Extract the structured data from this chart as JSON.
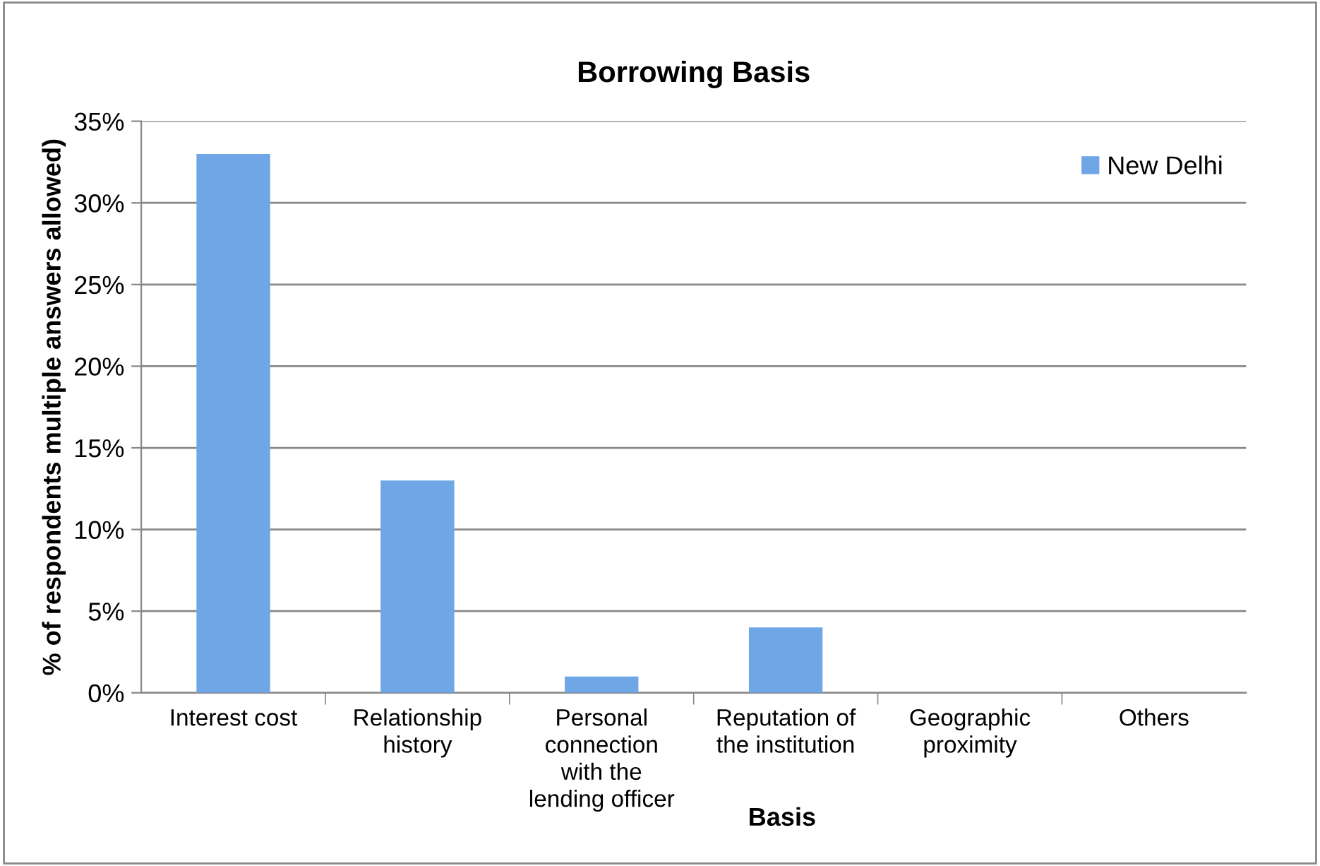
{
  "chart_data": {
    "type": "bar",
    "title": "Borrowing Basis",
    "xlabel": "Basis",
    "ylabel": "% of respondents multiple answers allowed)",
    "categories": [
      "Interest cost",
      "Relationship\nhistory",
      "Personal\nconnection\nwith the\nlending officer",
      "Reputation of\nthe institution",
      "Geographic\nproximity",
      "Others"
    ],
    "series": [
      {
        "name": "New Delhi",
        "color": "#6fa6e6",
        "values": [
          33,
          13,
          1,
          4,
          0,
          0
        ]
      }
    ],
    "ylim": [
      0,
      35
    ],
    "yticks": [
      {
        "value": 0,
        "label": "0%"
      },
      {
        "value": 5,
        "label": "5%"
      },
      {
        "value": 10,
        "label": "10%"
      },
      {
        "value": 15,
        "label": "15%"
      },
      {
        "value": 20,
        "label": "20%"
      },
      {
        "value": 25,
        "label": "25%"
      },
      {
        "value": 30,
        "label": "30%"
      },
      {
        "value": 35,
        "label": "35%"
      }
    ],
    "grid": "y",
    "legend": "top right"
  }
}
